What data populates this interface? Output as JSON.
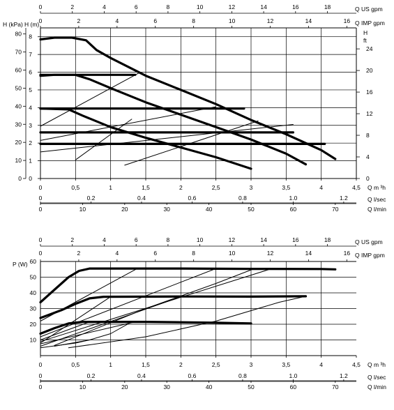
{
  "chart_data": [
    {
      "type": "line",
      "units": {
        "q_us": "Q US gpm",
        "q_imp": "Q IMP gpm",
        "q_m3h": "Q m ³h",
        "q_ls": "Q l/sec",
        "q_lmin": "Q l/min",
        "kpa": "H (kPa)",
        "hm": "H (m)",
        "hft_h": "H",
        "hft_ft": "ft"
      },
      "ticks": {
        "q_us": [
          "0",
          "2",
          "4",
          "6",
          "8",
          "10",
          "12",
          "14",
          "16",
          "18"
        ],
        "q_imp": [
          "0",
          "2",
          "4",
          "6",
          "8",
          "10",
          "12",
          "14",
          "16"
        ],
        "q_m3h": [
          "0",
          "0,5",
          "1",
          "1,5",
          "2",
          "2,5",
          "3",
          "3,5",
          "4",
          "4,5"
        ],
        "q_ls": [
          "0",
          "0.2",
          "0.4",
          "0.6",
          "0.8",
          "1.0",
          "1.2"
        ],
        "q_lmin": [
          "0",
          "10",
          "20",
          "30",
          "40",
          "50",
          "60",
          "70"
        ],
        "kpa": [
          "0",
          "10",
          "20",
          "30",
          "40",
          "50",
          "60",
          "70",
          "80"
        ],
        "hm": [
          "0",
          "1",
          "2",
          "3",
          "4",
          "5",
          "6",
          "7",
          "8"
        ],
        "hft": [
          "0",
          "4",
          "8",
          "12",
          "16",
          "20",
          "24"
        ]
      },
      "xlim": [
        0,
        4.5
      ],
      "ylim": [
        0,
        8.5
      ],
      "series": [
        {
          "values": [
            [
              0,
              7.85
            ],
            [
              0.2,
              7.95
            ],
            [
              0.45,
              7.95
            ],
            [
              0.65,
              7.8
            ],
            [
              0.8,
              7.25
            ],
            [
              1.0,
              6.8
            ],
            [
              1.5,
              5.8
            ],
            [
              2.0,
              5.0
            ],
            [
              2.5,
              4.2
            ],
            [
              3.0,
              3.3
            ],
            [
              3.5,
              2.5
            ],
            [
              4.0,
              1.6
            ],
            [
              4.2,
              1.1
            ]
          ]
        },
        {
          "values": [
            [
              0,
              5.8
            ],
            [
              0.2,
              5.85
            ],
            [
              0.5,
              5.85
            ],
            [
              0.7,
              5.6
            ],
            [
              1.0,
              5.1
            ],
            [
              1.5,
              4.3
            ],
            [
              2.0,
              3.6
            ],
            [
              2.5,
              2.9
            ],
            [
              3.0,
              2.2
            ],
            [
              3.5,
              1.4
            ],
            [
              3.78,
              0.8
            ]
          ]
        },
        {
          "values": [
            [
              0,
              3.95
            ],
            [
              0.4,
              3.9
            ],
            [
              0.6,
              3.55
            ],
            [
              1.0,
              2.9
            ],
            [
              1.5,
              2.3
            ],
            [
              2.0,
              1.75
            ],
            [
              2.5,
              1.2
            ],
            [
              3.0,
              0.55
            ]
          ]
        },
        {
          "values": [
            [
              0,
              5.85
            ],
            [
              1.35,
              5.85
            ]
          ]
        },
        {
          "values": [
            [
              0,
              3.95
            ],
            [
              2.9,
              3.95
            ]
          ]
        },
        {
          "values": [
            [
              0,
              2.6
            ],
            [
              3.6,
              2.6
            ]
          ]
        },
        {
          "values": [
            [
              0,
              1.95
            ],
            [
              4.05,
              1.95
            ]
          ]
        },
        {
          "values": [
            [
              0,
              2.95
            ],
            [
              1.4,
              5.95
            ]
          ]
        },
        {
          "values": [
            [
              0,
              2.15
            ],
            [
              2.5,
              4.05
            ]
          ]
        },
        {
          "values": [
            [
              0,
              1.5
            ],
            [
              3.6,
              3.05
            ]
          ]
        },
        {
          "values": [
            [
              0.5,
              1.05
            ],
            [
              1.3,
              3.35
            ]
          ]
        },
        {
          "values": [
            [
              1.2,
              0.75
            ],
            [
              3.1,
              3.25
            ]
          ]
        }
      ]
    },
    {
      "type": "line",
      "units": {
        "q_us": "Q US gpm",
        "q_imp": "Q IMP gpm",
        "q_m3h": "Q m ³h",
        "q_ls": "Q l/sec",
        "q_lmin": "Q l/min",
        "pw": "P (W)"
      },
      "ticks": {
        "q_us": [
          "0",
          "2",
          "4",
          "6",
          "8",
          "10",
          "12",
          "14",
          "16",
          "18"
        ],
        "q_imp": [
          "0",
          "2",
          "4",
          "6",
          "8",
          "10",
          "12",
          "14",
          "16"
        ],
        "q_m3h": [
          "0",
          "0,5",
          "1",
          "1,5",
          "2",
          "2,5",
          "3",
          "3,5",
          "4",
          "4,5"
        ],
        "q_ls": [
          "0",
          "0.2",
          "0.4",
          "0.6",
          "0.8",
          "1.0",
          "1.2"
        ],
        "q_lmin": [
          "0",
          "10",
          "20",
          "30",
          "40",
          "50",
          "60",
          "70"
        ],
        "pw": [
          "10",
          "20",
          "30",
          "40",
          "50",
          "60"
        ]
      },
      "xlim": [
        0,
        4.5
      ],
      "ylim": [
        0,
        60
      ],
      "series": [
        {
          "values": [
            [
              0,
              34
            ],
            [
              0.2,
              42
            ],
            [
              0.4,
              50
            ],
            [
              0.55,
              54
            ],
            [
              0.7,
              55.5
            ],
            [
              1.0,
              55.5
            ],
            [
              2.0,
              55.5
            ],
            [
              3.0,
              55.3
            ],
            [
              4.0,
              55.2
            ],
            [
              4.2,
              55
            ]
          ]
        },
        {
          "values": [
            [
              0,
              24
            ],
            [
              0.3,
              29
            ],
            [
              0.5,
              33
            ],
            [
              0.7,
              36.5
            ],
            [
              0.9,
              37.5
            ],
            [
              2.0,
              37.7
            ],
            [
              3.0,
              37.6
            ],
            [
              3.78,
              37.8
            ]
          ]
        },
        {
          "values": [
            [
              0,
              14
            ],
            [
              0.2,
              17.5
            ],
            [
              0.4,
              20.5
            ],
            [
              0.6,
              21.5
            ],
            [
              1.5,
              21.5
            ],
            [
              2.5,
              21
            ],
            [
              3.0,
              20.5
            ]
          ]
        },
        {
          "values": [
            [
              0,
              22
            ],
            [
              1.38,
              55.5
            ]
          ]
        },
        {
          "values": [
            [
              0,
              12
            ],
            [
              2.5,
              55.5
            ]
          ]
        },
        {
          "values": [
            [
              0,
              9
            ],
            [
              3.3,
              55.5
            ]
          ]
        },
        {
          "values": [
            [
              0.2,
              6.5
            ],
            [
              1.5,
              30
            ],
            [
              2.5,
              46
            ],
            [
              3.05,
              55.5
            ]
          ]
        },
        {
          "values": [
            [
              0,
              8
            ],
            [
              1.0,
              37.5
            ]
          ]
        },
        {
          "values": [
            [
              0,
              6
            ],
            [
              2.0,
              37.5
            ]
          ]
        },
        {
          "values": [
            [
              0,
              10
            ],
            [
              0.7,
              21.5
            ]
          ]
        },
        {
          "values": [
            [
              0,
              7.5
            ],
            [
              1.35,
              21.5
            ]
          ]
        },
        {
          "values": [
            [
              0.4,
              5
            ],
            [
              1.5,
              12
            ],
            [
              2.5,
              22
            ],
            [
              3.4,
              34
            ],
            [
              3.78,
              37.8
            ]
          ]
        },
        {
          "values": [
            [
              0.2,
              6
            ],
            [
              0.7,
              10
            ],
            [
              1.0,
              14
            ],
            [
              1.3,
              21.5
            ]
          ]
        },
        {
          "values": [
            [
              0,
              5
            ],
            [
              0.5,
              8
            ],
            [
              0.7,
              10
            ]
          ]
        }
      ]
    }
  ]
}
